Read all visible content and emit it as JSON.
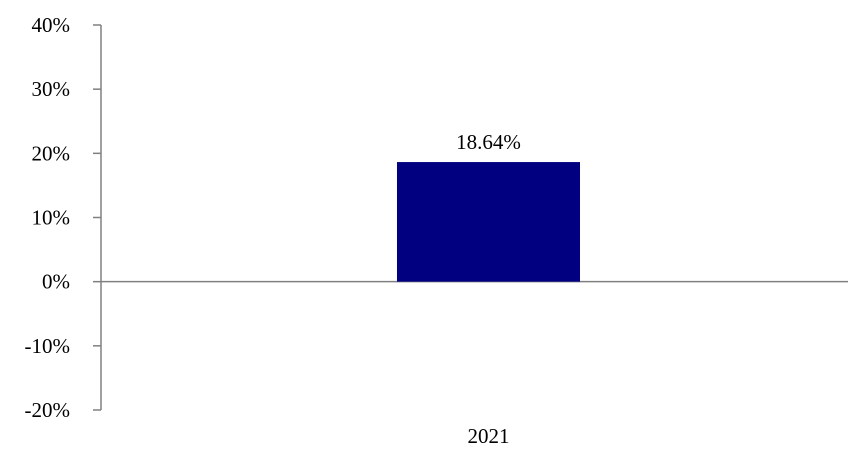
{
  "chart_data": {
    "type": "bar",
    "title": "",
    "xlabel": "",
    "ylabel": "",
    "categories": [
      "2021"
    ],
    "values": [
      18.64
    ],
    "data_labels": [
      "18.64%"
    ],
    "ylim": [
      -20,
      40
    ],
    "yticks": [
      40,
      30,
      20,
      10,
      0,
      -10,
      -20
    ],
    "ytick_labels": [
      "40%",
      "30%",
      "20%",
      "10%",
      "0%",
      "-10%",
      "-20%"
    ],
    "grid": false,
    "legend": "none",
    "bar_color": "#000080",
    "axis_color": "#808080"
  }
}
